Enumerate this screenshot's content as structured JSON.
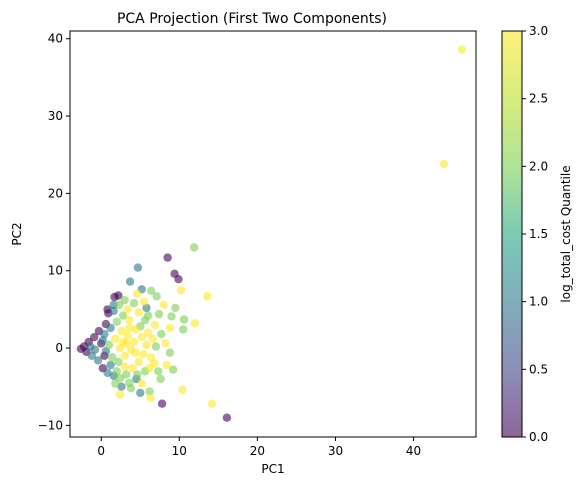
{
  "chart_data": {
    "type": "scatter",
    "title": "PCA Projection (First Two Components)",
    "xlabel": "PC1",
    "ylabel": "PC2",
    "xlim": [
      -4,
      48
    ],
    "ylim": [
      -11.5,
      41
    ],
    "xticks": [
      0,
      10,
      20,
      30,
      40
    ],
    "yticks": [
      -10,
      0,
      10,
      20,
      30,
      40
    ],
    "grid": false,
    "colormap": "viridis",
    "marker_alpha": 0.6,
    "colorbar": {
      "label": "log_total_cost Quantile",
      "range": [
        0,
        3
      ],
      "ticks": [
        "0.0",
        "0.5",
        "1.0",
        "1.5",
        "2.0",
        "2.5",
        "3.0"
      ]
    },
    "points": [
      {
        "x": 46.2,
        "y": 38.6,
        "c": 3
      },
      {
        "x": 43.9,
        "y": 23.8,
        "c": 3
      },
      {
        "x": 16.1,
        "y": -9.0,
        "c": 0
      },
      {
        "x": 14.2,
        "y": -7.2,
        "c": 3
      },
      {
        "x": 11.9,
        "y": 13.0,
        "c": 2
      },
      {
        "x": 13.6,
        "y": 6.7,
        "c": 3
      },
      {
        "x": 12.0,
        "y": 3.2,
        "c": 3
      },
      {
        "x": 10.4,
        "y": -5.4,
        "c": 3
      },
      {
        "x": 8.5,
        "y": 11.7,
        "c": 0
      },
      {
        "x": 9.4,
        "y": 9.6,
        "c": 0
      },
      {
        "x": 9.9,
        "y": 8.9,
        "c": 0
      },
      {
        "x": 10.2,
        "y": 7.5,
        "c": 3
      },
      {
        "x": 10.6,
        "y": 3.7,
        "c": 2
      },
      {
        "x": 10.5,
        "y": 2.4,
        "c": 2
      },
      {
        "x": 9.5,
        "y": 5.2,
        "c": 2
      },
      {
        "x": 9.0,
        "y": 4.1,
        "c": 2
      },
      {
        "x": 8.8,
        "y": 2.6,
        "c": 3
      },
      {
        "x": 9.2,
        "y": -2.8,
        "c": 2
      },
      {
        "x": 7.8,
        "y": -7.2,
        "c": 0
      },
      {
        "x": 8.2,
        "y": 0.6,
        "c": 3
      },
      {
        "x": 4.7,
        "y": 10.4,
        "c": 1
      },
      {
        "x": 5.2,
        "y": 7.6,
        "c": 1
      },
      {
        "x": 6.4,
        "y": 7.4,
        "c": 2
      },
      {
        "x": 7.1,
        "y": 6.7,
        "c": 2
      },
      {
        "x": 3.7,
        "y": 8.6,
        "c": 1
      },
      {
        "x": 4.6,
        "y": 7.0,
        "c": 3
      },
      {
        "x": 5.0,
        "y": -5.8,
        "c": 1
      },
      {
        "x": 6.2,
        "y": -5.6,
        "c": 2
      },
      {
        "x": 2.4,
        "y": -6.0,
        "c": 3
      },
      {
        "x": 6.3,
        "y": -6.4,
        "c": 3
      },
      {
        "x": 3.6,
        "y": -4.5,
        "c": 2
      },
      {
        "x": 4.5,
        "y": -4.0,
        "c": 1
      },
      {
        "x": 7.3,
        "y": -3.0,
        "c": 2
      },
      {
        "x": 6.8,
        "y": -2.0,
        "c": 3
      },
      {
        "x": 7.7,
        "y": 1.8,
        "c": 2
      },
      {
        "x": 6.9,
        "y": 3.0,
        "c": 3
      },
      {
        "x": 6.0,
        "y": 4.2,
        "c": 2
      },
      {
        "x": 5.5,
        "y": 6.0,
        "c": 3
      },
      {
        "x": 3.0,
        "y": 6.2,
        "c": 2
      },
      {
        "x": 2.3,
        "y": 5.6,
        "c": 2
      },
      {
        "x": 1.6,
        "y": 4.8,
        "c": 1
      },
      {
        "x": 0.9,
        "y": 4.5,
        "c": 0
      },
      {
        "x": 0.6,
        "y": 3.1,
        "c": 0
      },
      {
        "x": 1.7,
        "y": 6.6,
        "c": 0
      },
      {
        "x": -0.3,
        "y": 2.2,
        "c": 0
      },
      {
        "x": -0.9,
        "y": 1.4,
        "c": 0
      },
      {
        "x": -1.6,
        "y": 0.8,
        "c": 0
      },
      {
        "x": -2.2,
        "y": 0.2,
        "c": 0
      },
      {
        "x": -2.6,
        "y": -0.1,
        "c": 0
      },
      {
        "x": -1.9,
        "y": -0.5,
        "c": 0
      },
      {
        "x": -1.2,
        "y": -1.0,
        "c": 1
      },
      {
        "x": -0.4,
        "y": -1.6,
        "c": 1
      },
      {
        "x": 0.2,
        "y": -2.6,
        "c": 0
      },
      {
        "x": 0.8,
        "y": -3.2,
        "c": 1
      },
      {
        "x": 1.6,
        "y": -3.6,
        "c": 1
      },
      {
        "x": 2.4,
        "y": -3.9,
        "c": 2
      },
      {
        "x": 3.2,
        "y": -3.4,
        "c": 2
      },
      {
        "x": 4.0,
        "y": -2.6,
        "c": 3
      },
      {
        "x": 4.8,
        "y": -1.8,
        "c": 3
      },
      {
        "x": 5.4,
        "y": -0.8,
        "c": 3
      },
      {
        "x": 5.8,
        "y": 0.4,
        "c": 3
      },
      {
        "x": 5.2,
        "y": 1.4,
        "c": 3
      },
      {
        "x": 4.4,
        "y": 2.4,
        "c": 3
      },
      {
        "x": 3.6,
        "y": 3.6,
        "c": 3
      },
      {
        "x": 2.8,
        "y": 4.2,
        "c": 2
      },
      {
        "x": 2.0,
        "y": 3.4,
        "c": 2
      },
      {
        "x": 1.2,
        "y": 2.6,
        "c": 1
      },
      {
        "x": 0.4,
        "y": 1.8,
        "c": 1
      },
      {
        "x": 0.0,
        "y": 0.6,
        "c": 0
      },
      {
        "x": 0.6,
        "y": -0.4,
        "c": 1
      },
      {
        "x": 1.4,
        "y": -1.2,
        "c": 2
      },
      {
        "x": 2.2,
        "y": -1.8,
        "c": 2
      },
      {
        "x": 3.0,
        "y": -1.0,
        "c": 3
      },
      {
        "x": 3.8,
        "y": -0.2,
        "c": 3
      },
      {
        "x": 4.2,
        "y": 0.8,
        "c": 3
      },
      {
        "x": 3.4,
        "y": 1.6,
        "c": 3
      },
      {
        "x": 2.6,
        "y": 2.2,
        "c": 3
      },
      {
        "x": 1.8,
        "y": 1.2,
        "c": 3
      },
      {
        "x": 1.0,
        "y": 0.4,
        "c": 2
      },
      {
        "x": 2.4,
        "y": 0.0,
        "c": 3
      },
      {
        "x": 3.2,
        "y": 0.6,
        "c": 3
      },
      {
        "x": 4.6,
        "y": -3.4,
        "c": 2
      },
      {
        "x": 5.6,
        "y": -3.0,
        "c": 2
      },
      {
        "x": 6.4,
        "y": -1.2,
        "c": 3
      },
      {
        "x": 7.0,
        "y": 0.2,
        "c": 2
      },
      {
        "x": 6.6,
        "y": 1.2,
        "c": 3
      },
      {
        "x": 7.4,
        "y": 4.4,
        "c": 2
      },
      {
        "x": 8.0,
        "y": 5.6,
        "c": 3
      },
      {
        "x": 5.8,
        "y": 5.2,
        "c": 1
      },
      {
        "x": 4.2,
        "y": 5.8,
        "c": 2
      },
      {
        "x": 3.4,
        "y": 5.0,
        "c": 3
      },
      {
        "x": 2.6,
        "y": -5.0,
        "c": 1
      },
      {
        "x": 1.8,
        "y": -4.6,
        "c": 2
      },
      {
        "x": 3.8,
        "y": -5.2,
        "c": 2
      },
      {
        "x": 5.2,
        "y": -4.6,
        "c": 3
      },
      {
        "x": 7.6,
        "y": -4.0,
        "c": 2
      },
      {
        "x": 8.4,
        "y": -2.2,
        "c": 3
      },
      {
        "x": 8.8,
        "y": -0.6,
        "c": 2
      },
      {
        "x": -0.8,
        "y": -0.2,
        "c": 1
      },
      {
        "x": -1.4,
        "y": 0.2,
        "c": 1
      },
      {
        "x": 0.2,
        "y": 1.0,
        "c": 1
      },
      {
        "x": 1.6,
        "y": 5.6,
        "c": 1
      },
      {
        "x": 0.8,
        "y": 5.0,
        "c": 0
      },
      {
        "x": 2.2,
        "y": 6.8,
        "c": 0
      },
      {
        "x": 4.4,
        "y": -0.6,
        "c": 3
      },
      {
        "x": 3.0,
        "y": -2.4,
        "c": 3
      },
      {
        "x": 2.0,
        "y": -3.0,
        "c": 2
      },
      {
        "x": 1.2,
        "y": -2.2,
        "c": 1
      },
      {
        "x": 0.4,
        "y": -1.0,
        "c": 0
      },
      {
        "x": 5.0,
        "y": 2.8,
        "c": 2
      },
      {
        "x": 6.0,
        "y": 2.0,
        "c": 3
      },
      {
        "x": 6.2,
        "y": -2.6,
        "c": 3
      },
      {
        "x": 2.8,
        "y": 0.8,
        "c": 3
      },
      {
        "x": 3.6,
        "y": 2.6,
        "c": 3
      },
      {
        "x": 4.8,
        "y": 4.6,
        "c": 3
      },
      {
        "x": 5.6,
        "y": 3.6,
        "c": 2
      }
    ]
  }
}
